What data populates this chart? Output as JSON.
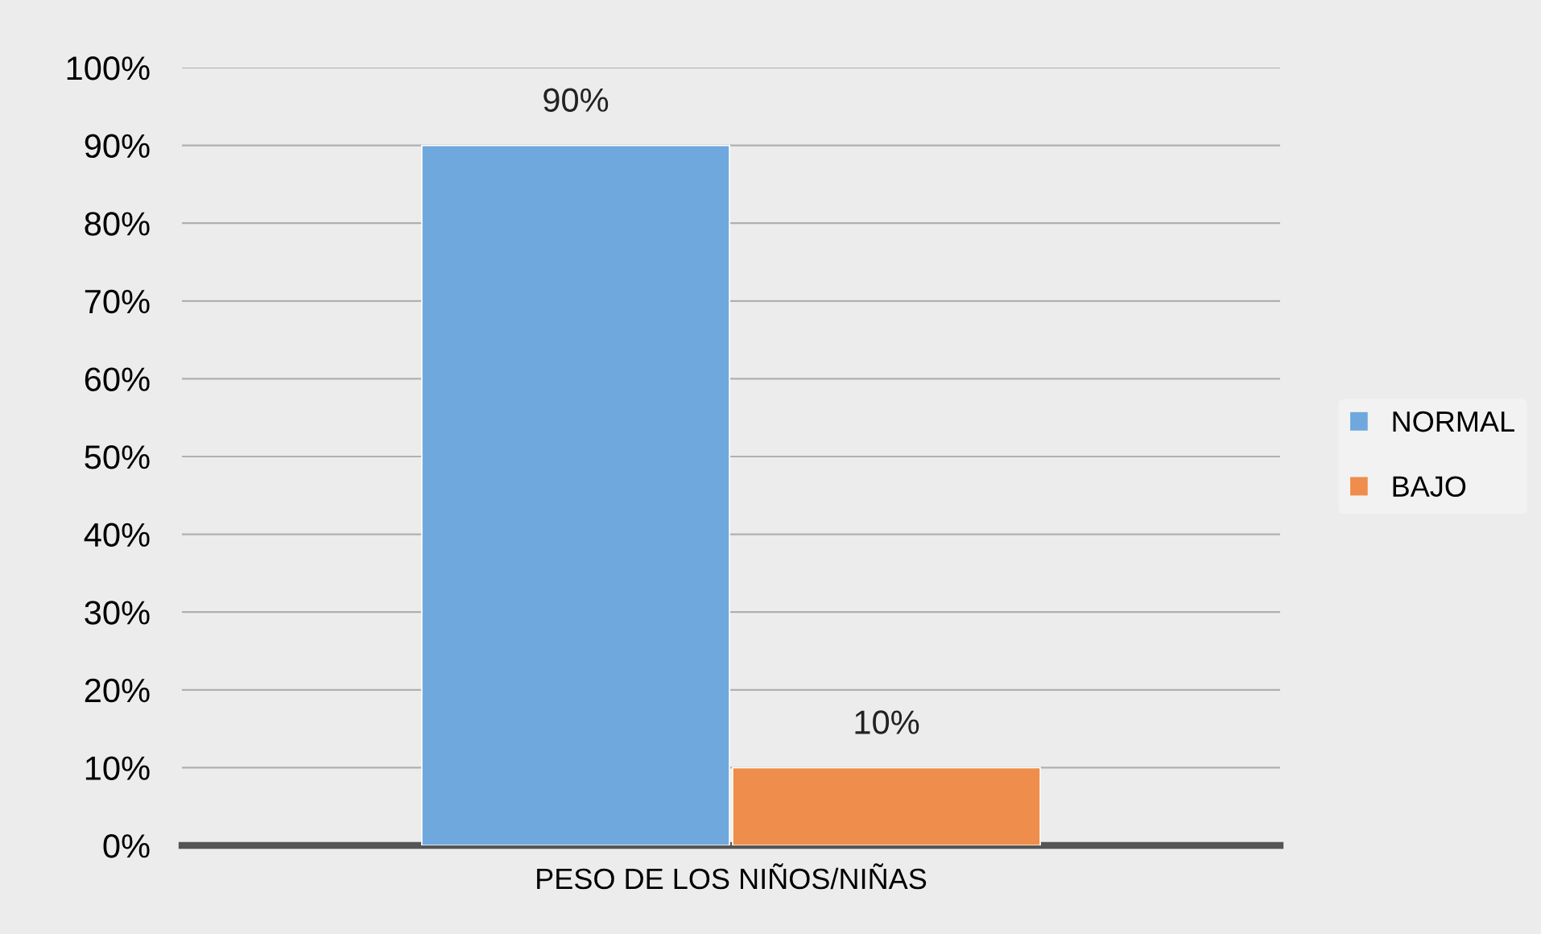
{
  "chart_data": {
    "type": "bar",
    "categories": [
      "PESO DE LOS NIÑOS/NIÑAS"
    ],
    "series": [
      {
        "name": "NORMAL",
        "color": "#6fa8dc",
        "values": [
          90
        ],
        "value_labels": [
          "90%"
        ]
      },
      {
        "name": "BAJO",
        "color": "#ee8d4c",
        "values": [
          10
        ],
        "value_labels": [
          "10%"
        ]
      }
    ],
    "ylim": [
      0,
      100
    ],
    "yticks": [
      {
        "value": 0,
        "label": "0%"
      },
      {
        "value": 10,
        "label": "10%"
      },
      {
        "value": 20,
        "label": "20%"
      },
      {
        "value": 30,
        "label": "30%"
      },
      {
        "value": 40,
        "label": "40%"
      },
      {
        "value": 50,
        "label": "50%"
      },
      {
        "value": 60,
        "label": "60%"
      },
      {
        "value": 70,
        "label": "70%"
      },
      {
        "value": 80,
        "label": "80%"
      },
      {
        "value": 90,
        "label": "90%"
      },
      {
        "value": 100,
        "label": "100%"
      }
    ],
    "grid": "y",
    "legend": "right"
  }
}
